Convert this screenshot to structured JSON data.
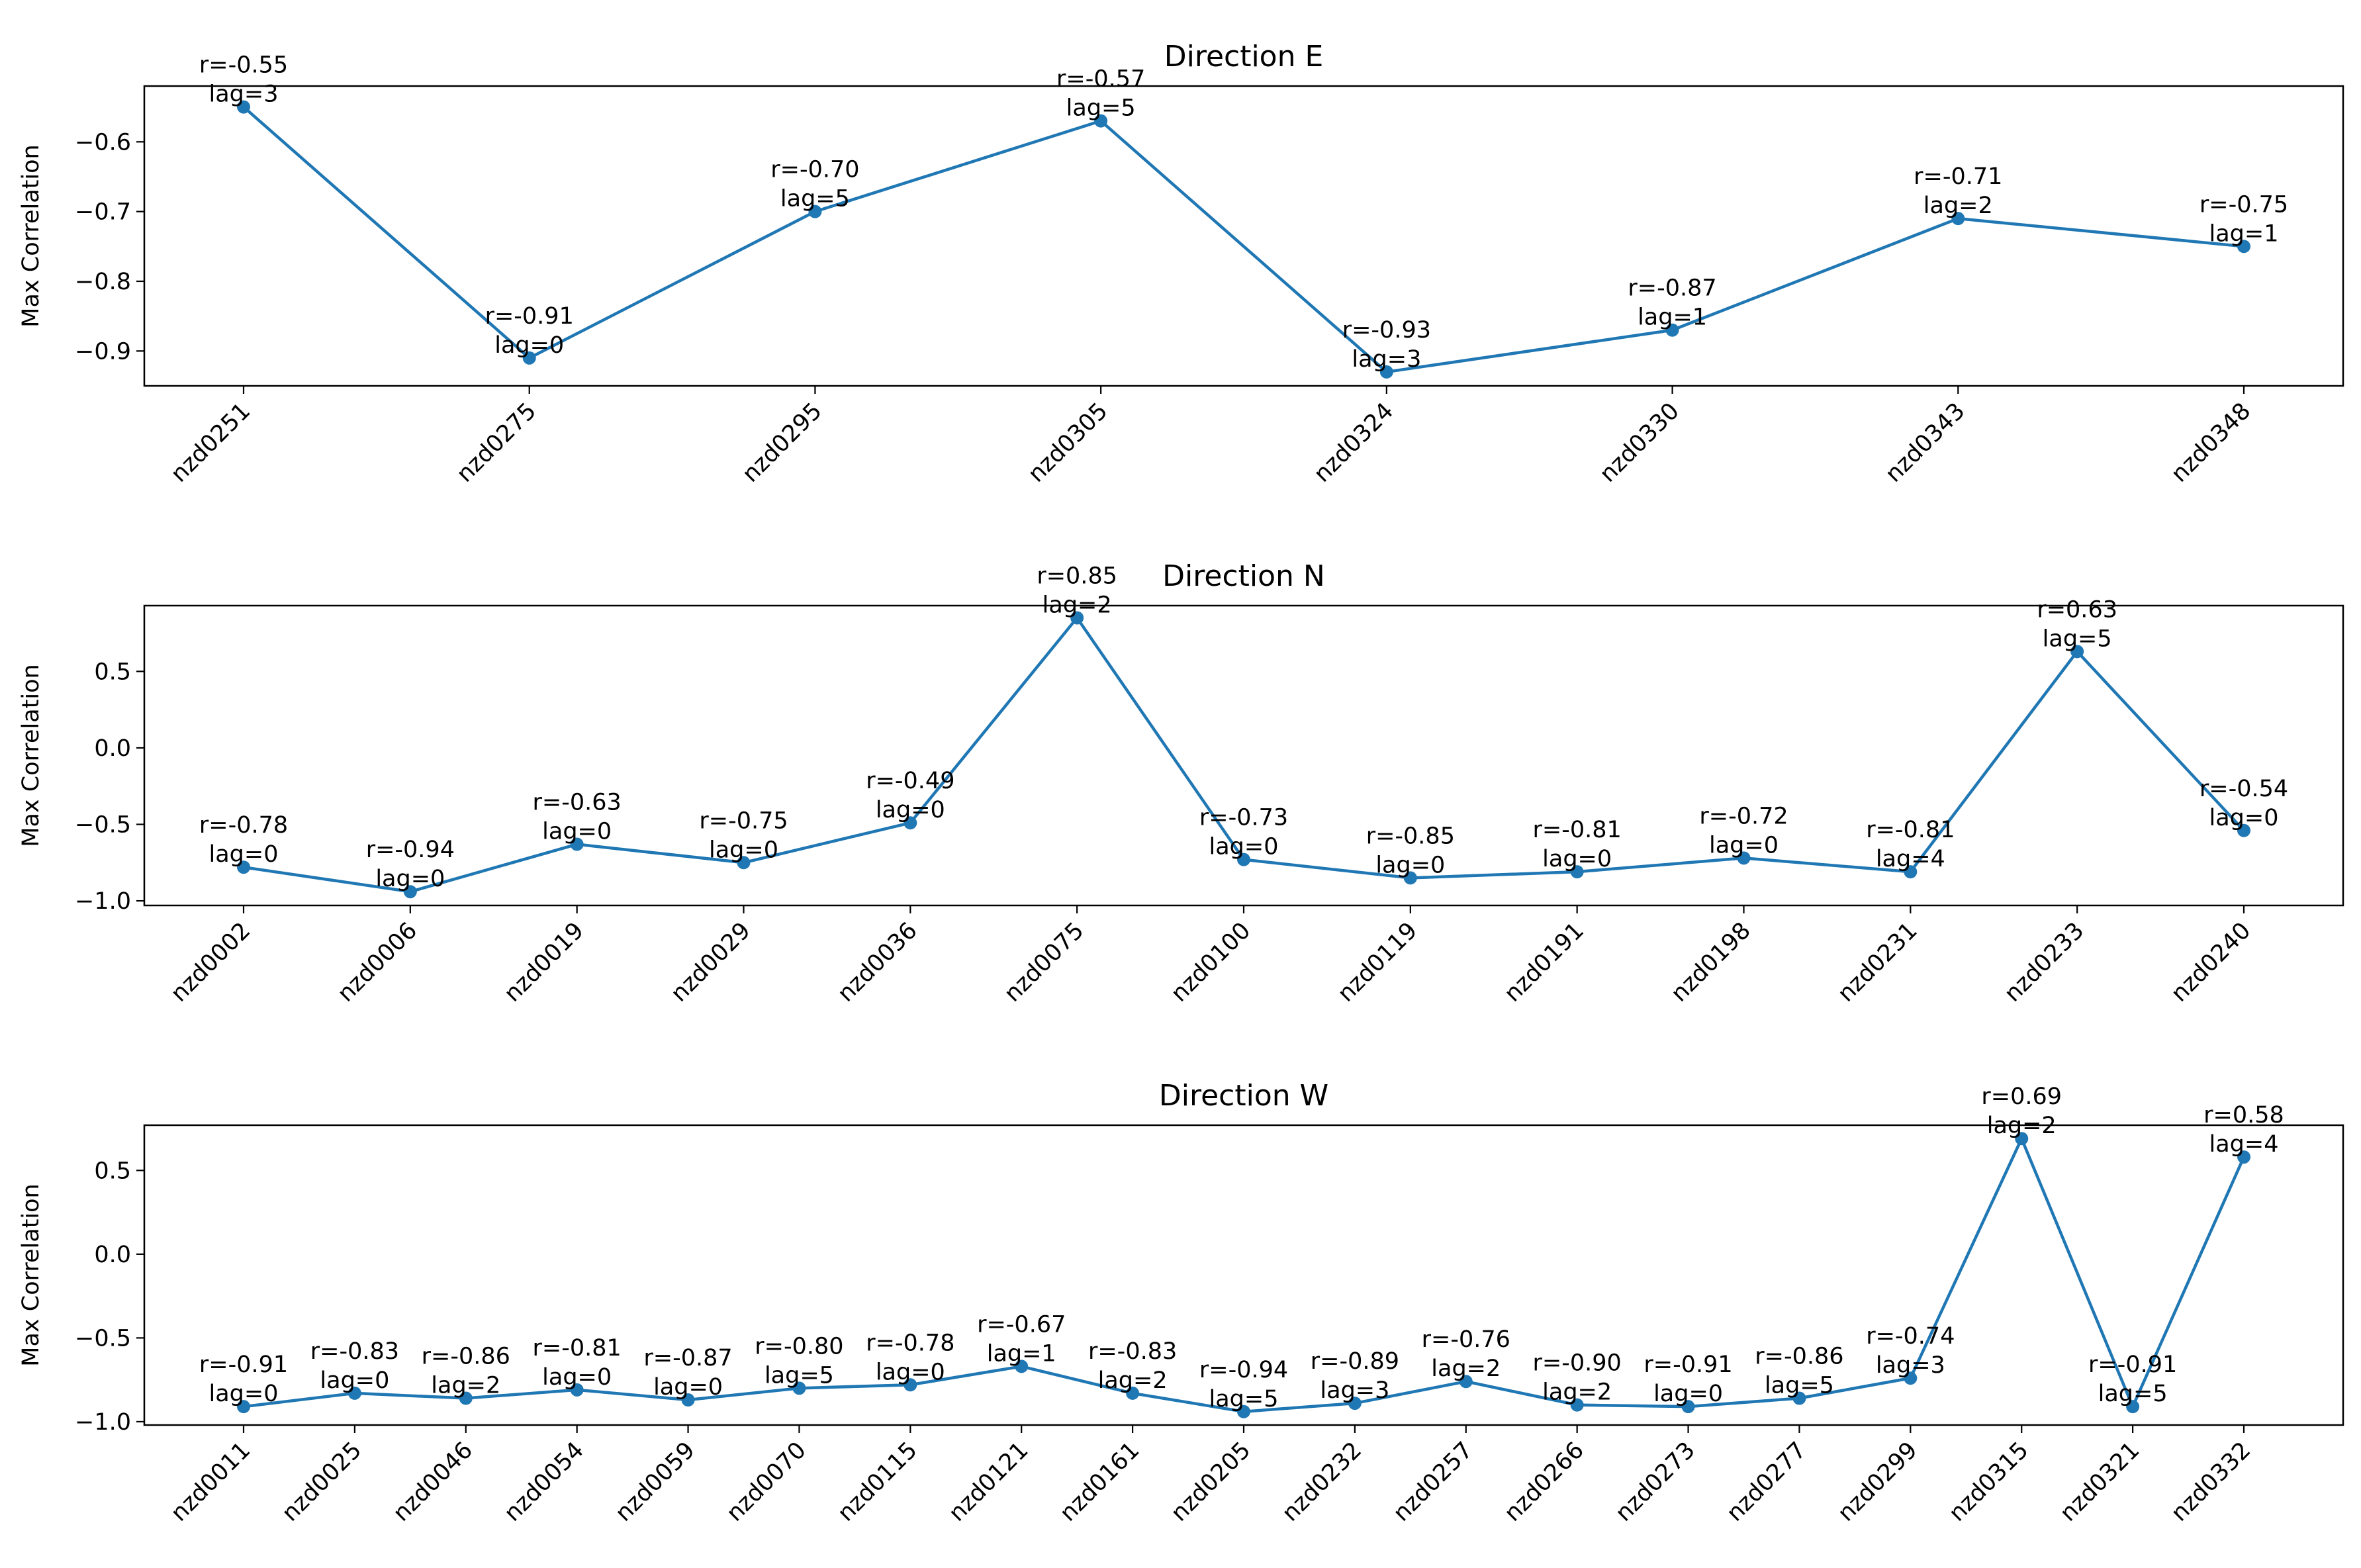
{
  "chart_data": [
    {
      "type": "line",
      "title": "Direction E",
      "ylabel": "Max Correlation",
      "xlabel": "",
      "ylim": [
        -0.95,
        -0.52
      ],
      "yticks": [
        -0.6,
        -0.7,
        -0.8,
        -0.9
      ],
      "ytick_labels": [
        "−0.6",
        "−0.7",
        "−0.8",
        "−0.9"
      ],
      "color": "#1f77b4",
      "categories": [
        "nzd0251",
        "nzd0275",
        "nzd0295",
        "nzd0305",
        "nzd0324",
        "nzd0330",
        "nzd0343",
        "nzd0348"
      ],
      "values": [
        -0.55,
        -0.91,
        -0.7,
        -0.57,
        -0.93,
        -0.87,
        -0.71,
        -0.75
      ],
      "annotations": [
        {
          "r": "r=-0.55",
          "lag": "lag=3"
        },
        {
          "r": "r=-0.91",
          "lag": "lag=0"
        },
        {
          "r": "r=-0.70",
          "lag": "lag=5"
        },
        {
          "r": "r=-0.57",
          "lag": "lag=5"
        },
        {
          "r": "r=-0.93",
          "lag": "lag=3"
        },
        {
          "r": "r=-0.87",
          "lag": "lag=1"
        },
        {
          "r": "r=-0.71",
          "lag": "lag=2"
        },
        {
          "r": "r=-0.75",
          "lag": "lag=1"
        }
      ]
    },
    {
      "type": "line",
      "title": "Direction N",
      "ylabel": "Max Correlation",
      "xlabel": "",
      "ylim": [
        -1.03,
        0.93
      ],
      "yticks": [
        0.5,
        0.0,
        -0.5,
        -1.0
      ],
      "ytick_labels": [
        "0.5",
        "0.0",
        "−0.5",
        "−1.0"
      ],
      "color": "#1f77b4",
      "categories": [
        "nzd0002",
        "nzd0006",
        "nzd0019",
        "nzd0029",
        "nzd0036",
        "nzd0075",
        "nzd0100",
        "nzd0119",
        "nzd0191",
        "nzd0198",
        "nzd0231",
        "nzd0233",
        "nzd0240"
      ],
      "values": [
        -0.78,
        -0.94,
        -0.63,
        -0.75,
        -0.49,
        0.85,
        -0.73,
        -0.85,
        -0.81,
        -0.72,
        -0.81,
        0.63,
        -0.54
      ],
      "annotations": [
        {
          "r": "r=-0.78",
          "lag": "lag=0"
        },
        {
          "r": "r=-0.94",
          "lag": "lag=0"
        },
        {
          "r": "r=-0.63",
          "lag": "lag=0"
        },
        {
          "r": "r=-0.75",
          "lag": "lag=0"
        },
        {
          "r": "r=-0.49",
          "lag": "lag=0"
        },
        {
          "r": "r=0.85",
          "lag": "lag=2"
        },
        {
          "r": "r=-0.73",
          "lag": "lag=0"
        },
        {
          "r": "r=-0.85",
          "lag": "lag=0"
        },
        {
          "r": "r=-0.81",
          "lag": "lag=0"
        },
        {
          "r": "r=-0.72",
          "lag": "lag=0"
        },
        {
          "r": "r=-0.81",
          "lag": "lag=4"
        },
        {
          "r": "r=0.63",
          "lag": "lag=5"
        },
        {
          "r": "r=-0.54",
          "lag": "lag=0"
        }
      ]
    },
    {
      "type": "line",
      "title": "Direction W",
      "ylabel": "Max Correlation",
      "xlabel": "",
      "ylim": [
        -1.02,
        0.77
      ],
      "yticks": [
        0.5,
        0.0,
        -0.5,
        -1.0
      ],
      "ytick_labels": [
        "0.5",
        "0.0",
        "−0.5",
        "−1.0"
      ],
      "color": "#1f77b4",
      "categories": [
        "nzd0011",
        "nzd0025",
        "nzd0046",
        "nzd0054",
        "nzd0059",
        "nzd0070",
        "nzd0115",
        "nzd0121",
        "nzd0161",
        "nzd0205",
        "nzd0232",
        "nzd0257",
        "nzd0266",
        "nzd0273",
        "nzd0277",
        "nzd0299",
        "nzd0315",
        "nzd0321",
        "nzd0332"
      ],
      "values": [
        -0.91,
        -0.83,
        -0.86,
        -0.81,
        -0.87,
        -0.8,
        -0.78,
        -0.67,
        -0.83,
        -0.94,
        -0.89,
        -0.76,
        -0.9,
        -0.91,
        -0.86,
        -0.74,
        0.69,
        -0.91,
        0.58
      ],
      "annotations": [
        {
          "r": "r=-0.91",
          "lag": "lag=0"
        },
        {
          "r": "r=-0.83",
          "lag": "lag=0"
        },
        {
          "r": "r=-0.86",
          "lag": "lag=2"
        },
        {
          "r": "r=-0.81",
          "lag": "lag=0"
        },
        {
          "r": "r=-0.87",
          "lag": "lag=0"
        },
        {
          "r": "r=-0.80",
          "lag": "lag=5"
        },
        {
          "r": "r=-0.78",
          "lag": "lag=0"
        },
        {
          "r": "r=-0.67",
          "lag": "lag=1"
        },
        {
          "r": "r=-0.83",
          "lag": "lag=2"
        },
        {
          "r": "r=-0.94",
          "lag": "lag=5"
        },
        {
          "r": "r=-0.89",
          "lag": "lag=3"
        },
        {
          "r": "r=-0.76",
          "lag": "lag=2"
        },
        {
          "r": "r=-0.90",
          "lag": "lag=2"
        },
        {
          "r": "r=-0.91",
          "lag": "lag=0"
        },
        {
          "r": "r=-0.86",
          "lag": "lag=5"
        },
        {
          "r": "r=-0.74",
          "lag": "lag=3"
        },
        {
          "r": "r=0.69",
          "lag": "lag=2"
        },
        {
          "r": "r=-0.91",
          "lag": "lag=5"
        },
        {
          "r": "r=0.58",
          "lag": "lag=4"
        }
      ]
    }
  ]
}
